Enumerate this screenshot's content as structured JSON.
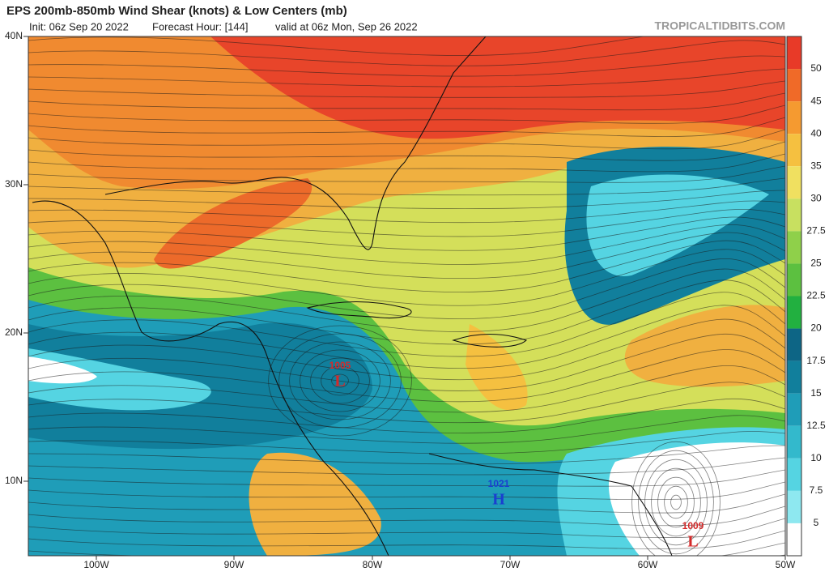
{
  "header": {
    "title": "EPS 200mb-850mb Wind Shear (knots) & Low Centers (mb)",
    "init": "Init: 06z Sep 20 2022",
    "forecast_hour": "Forecast Hour: [144]",
    "valid": "valid at 06z Mon, Sep 26 2022",
    "watermark": "TROPICALTIDBITS.COM"
  },
  "map": {
    "lat_labels": [
      "40N",
      "30N",
      "20N",
      "10N"
    ],
    "lon_labels": [
      "100W",
      "90W",
      "80W",
      "70W",
      "60W",
      "50W"
    ],
    "centers": [
      {
        "pressure": "1005",
        "symbol": "L",
        "color": "#d42a2a"
      },
      {
        "pressure": "1021",
        "symbol": "H",
        "color": "#1a3fd0"
      },
      {
        "pressure": "1009",
        "symbol": "L",
        "color": "#d42a2a"
      }
    ]
  },
  "colorbar": {
    "labels": [
      "50",
      "45",
      "40",
      "35",
      "30",
      "27.5",
      "25",
      "22.5",
      "20",
      "17.5",
      "15",
      "12.5",
      "10",
      "7.5",
      "5"
    ],
    "colors": [
      "#e83a28",
      "#f06a28",
      "#f59a30",
      "#f5c040",
      "#f0e060",
      "#c8e060",
      "#8fd04a",
      "#5cc040",
      "#22b040",
      "#0d6585",
      "#117f9c",
      "#1f9db8",
      "#33b9cc",
      "#55d4e2",
      "#8ee8f0",
      "#ffffff"
    ]
  }
}
